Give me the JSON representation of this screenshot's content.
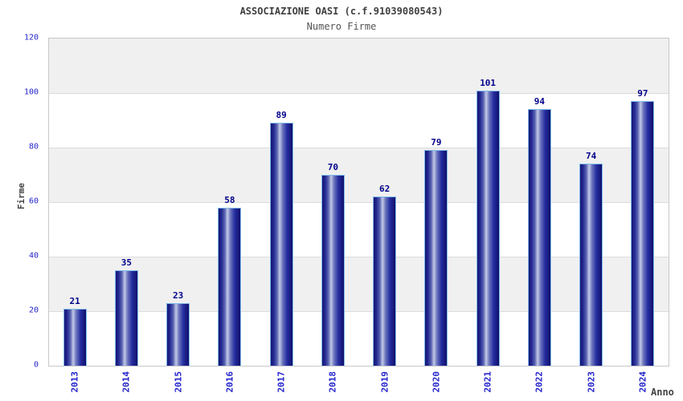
{
  "chart": {
    "title": "ASSOCIAZIONE OASI (c.f.91039080543)",
    "subtitle": "Numero Firme",
    "ylabel": "Firme",
    "xlabel": "Anno"
  },
  "chart_data": {
    "type": "bar",
    "title": "ASSOCIAZIONE OASI (c.f.91039080543)",
    "subtitle": "Numero Firme",
    "categories": [
      "2013",
      "2014",
      "2015",
      "2016",
      "2017",
      "2018",
      "2019",
      "2020",
      "2021",
      "2022",
      "2023",
      "2024"
    ],
    "values": [
      21,
      35,
      23,
      58,
      89,
      70,
      62,
      79,
      101,
      94,
      74,
      97
    ],
    "xlabel": "Anno",
    "ylabel": "Firme",
    "ylim": [
      0,
      120
    ],
    "yticks": [
      0,
      20,
      40,
      60,
      80,
      100,
      120
    ],
    "grid": "horizontal alternating bands",
    "legend": "none",
    "bar_value_labels": true
  },
  "colors": {
    "bar_edge_dark": "#10106a",
    "bar_highlight": "#c3c9e7",
    "bar_border": "#7db9ea",
    "value_label": "#00008b",
    "tick_label": "#2323cc",
    "band_gray": "#f0f0f0",
    "band_white": "#ffffff",
    "grid_line": "#dcdcdc",
    "plot_border": "#c8c8c8",
    "title_text": "#404040"
  }
}
